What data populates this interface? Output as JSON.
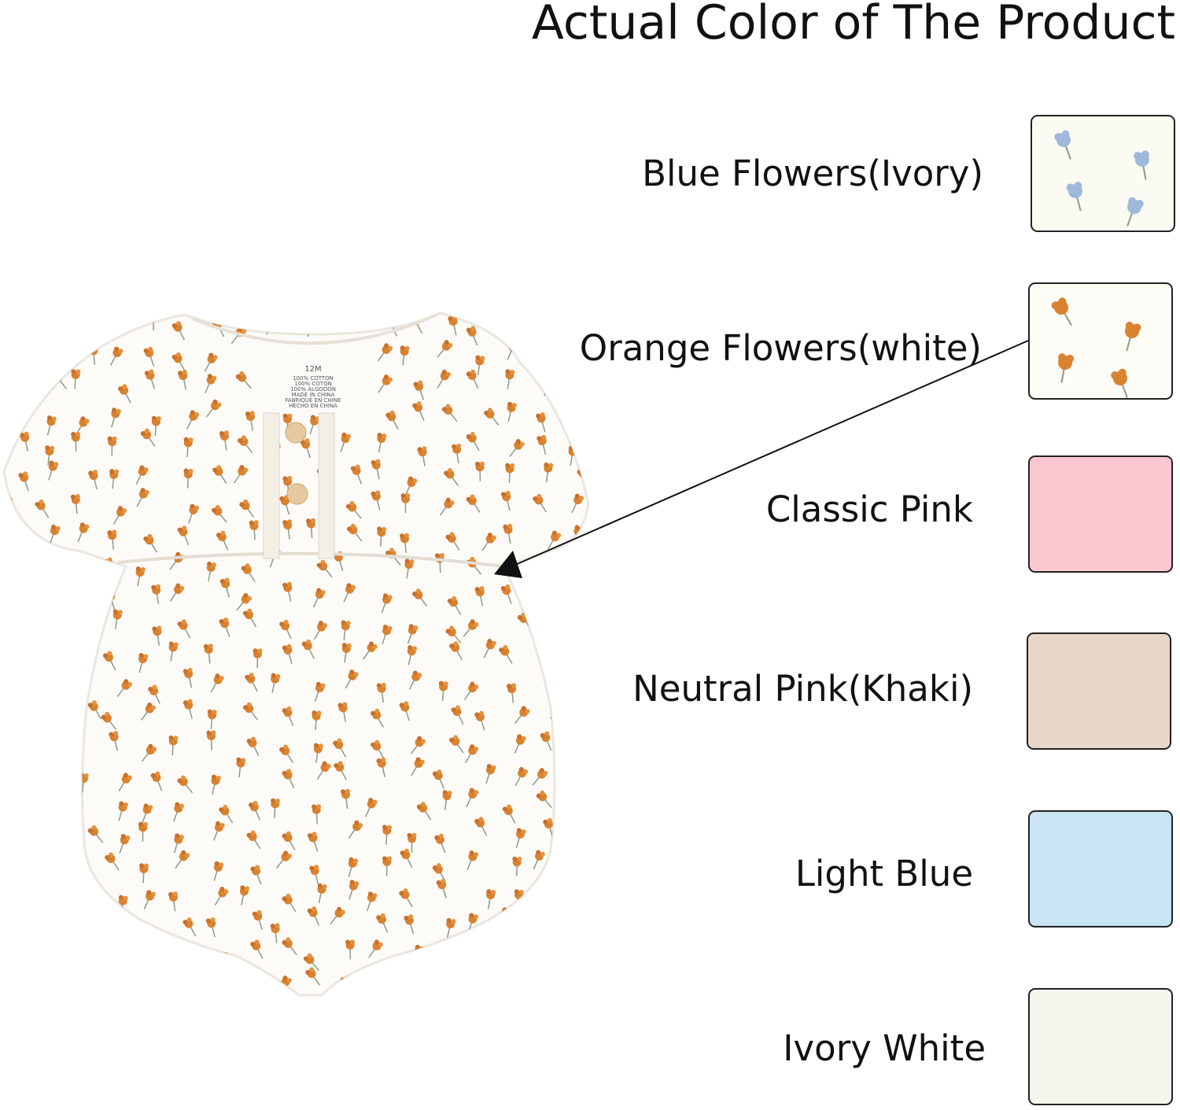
{
  "title": "Actual Color of The Product",
  "garment_tag": {
    "size": "12M",
    "lines": [
      "100% COTTON",
      "100% COTON",
      "100% ALGODON",
      "MADE IN CHINA",
      "FABRIQUÉ EN CHINE",
      "HECHO EN CHINA"
    ]
  },
  "colors": [
    {
      "label": "Blue Flowers(Ivory)",
      "swatch": "#fcfbf3",
      "pattern": "blue-flowers",
      "flower": "#9fb9dc"
    },
    {
      "label": "Orange Flowers(white)",
      "swatch": "#fdfcf7",
      "pattern": "orange-flowers",
      "flower": "#d9822f"
    },
    {
      "label": "Classic Pink",
      "swatch": "#fdc7d2"
    },
    {
      "label": "Neutral Pink(Khaki)",
      "swatch": "#e8d7cb"
    },
    {
      "label": "Light Blue",
      "swatch": "#c9e4f2"
    },
    {
      "label": "Ivory White",
      "swatch": "#f5f5ee"
    }
  ]
}
